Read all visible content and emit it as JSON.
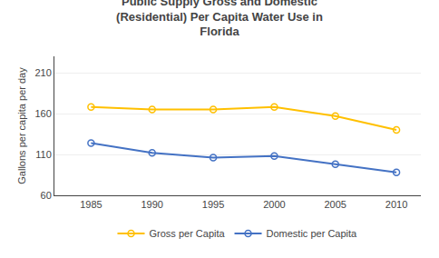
{
  "chart_data": {
    "type": "line",
    "title": "Public Supply Gross and Domestic\n(Residential) Per Capita Water Use in\nFlorida",
    "ylabel": "Gallons per capita per day",
    "x": [
      1985,
      1990,
      1995,
      2000,
      2005,
      2010
    ],
    "series": [
      {
        "name": "Gross per Capita",
        "color": "#FFC000",
        "marker": "circle",
        "line_style": "solid",
        "values": [
          168,
          165,
          165,
          168,
          157,
          140
        ]
      },
      {
        "name": "Domestic per Capita",
        "color": "#4472C4",
        "marker": "circle",
        "line_style": "solid",
        "values": [
          124,
          112,
          106,
          108,
          98,
          88
        ]
      }
    ],
    "xlim": [
      1982,
      2012
    ],
    "xticks": [
      1985,
      1990,
      1995,
      2000,
      2005,
      2010
    ],
    "ylim": [
      60,
      230
    ],
    "yticks": [
      60,
      110,
      160,
      210
    ],
    "grid": true,
    "legend": "bottom"
  }
}
